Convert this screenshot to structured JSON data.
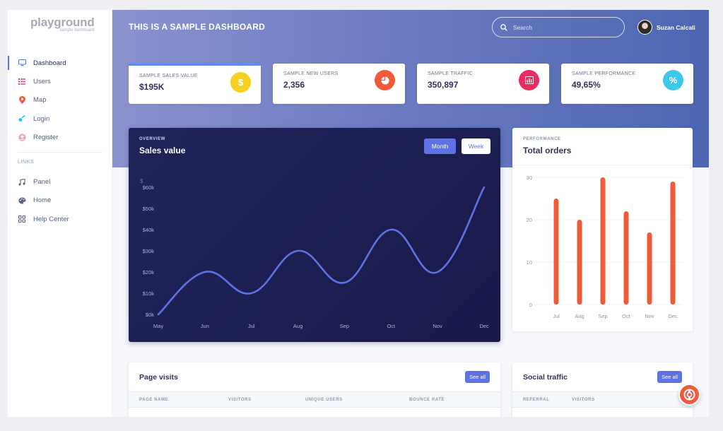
{
  "brand": {
    "logo": "playground",
    "sub": "sample dashboard"
  },
  "sidebar": {
    "items": [
      {
        "label": "Dashboard",
        "icon": "monitor-icon"
      },
      {
        "label": "Users",
        "icon": "list-icon"
      },
      {
        "label": "Map",
        "icon": "pin-icon"
      },
      {
        "label": "Login",
        "icon": "key-icon"
      },
      {
        "label": "Register",
        "icon": "user-circle-icon"
      }
    ],
    "links_heading": "LINKS",
    "links": [
      {
        "label": "Panel",
        "icon": "music-icon"
      },
      {
        "label": "Home",
        "icon": "palette-icon"
      },
      {
        "label": "Help Center",
        "icon": "grid-icon"
      }
    ]
  },
  "header": {
    "title": "THIS IS A SAMPLE DASHBOARD",
    "search_placeholder": "Search",
    "user_name": "Suzan Calcali"
  },
  "stats": [
    {
      "label": "SAMPLE SALES VALUE",
      "value": "$195K",
      "icon": "dollar-icon",
      "glyph": "$",
      "color": "#f5d01f"
    },
    {
      "label": "SAMPLE NEW USERS",
      "value": "2,356",
      "icon": "pie-icon",
      "glyph": "",
      "color": "#f05a3a"
    },
    {
      "label": "SAMPLE TRAFFIC",
      "value": "350,897",
      "icon": "bar-chart-icon",
      "glyph": "",
      "color": "#ee2a62"
    },
    {
      "label": "SAMPLE PERFORMANCE",
      "value": "49,65%",
      "icon": "percent-icon",
      "glyph": "%",
      "color": "#3fc7ea"
    }
  ],
  "sales": {
    "kicker": "OVERVIEW",
    "title": "Sales value",
    "month_label": "Month",
    "week_label": "Week"
  },
  "orders": {
    "kicker": "PERFORMANCE",
    "title": "Total orders"
  },
  "visits": {
    "title": "Page visits",
    "see_all": "See all",
    "columns": [
      "PAGE NAME",
      "VISITORS",
      "UNIQUE USERS",
      "BOUNCE RATE"
    ]
  },
  "social": {
    "title": "Social traffic",
    "see_all": "See all",
    "columns": [
      "REFERRAL",
      "VISITORS"
    ]
  },
  "chart_data": [
    {
      "type": "line",
      "title": "Sales value",
      "ylabel": "$",
      "categories": [
        "May",
        "Jun",
        "Jul",
        "Aug",
        "Sep",
        "Oct",
        "Nov",
        "Dec"
      ],
      "values": [
        0,
        20,
        10,
        30,
        15,
        40,
        20,
        60
      ],
      "yticks": [
        "$0k",
        "$10k",
        "$20k",
        "$30k",
        "$40k",
        "$50k",
        "$60k"
      ],
      "ylim": [
        0,
        60
      ],
      "color": "#5e72e4"
    },
    {
      "type": "bar",
      "title": "Total orders",
      "categories": [
        "Jul",
        "Aug",
        "Sep",
        "Oct",
        "Nov",
        "Dec"
      ],
      "values": [
        25,
        20,
        30,
        22,
        17,
        29
      ],
      "yticks": [
        "0",
        "10",
        "20",
        "30"
      ],
      "ylim": [
        0,
        30
      ],
      "color": "#f05a3a"
    }
  ]
}
